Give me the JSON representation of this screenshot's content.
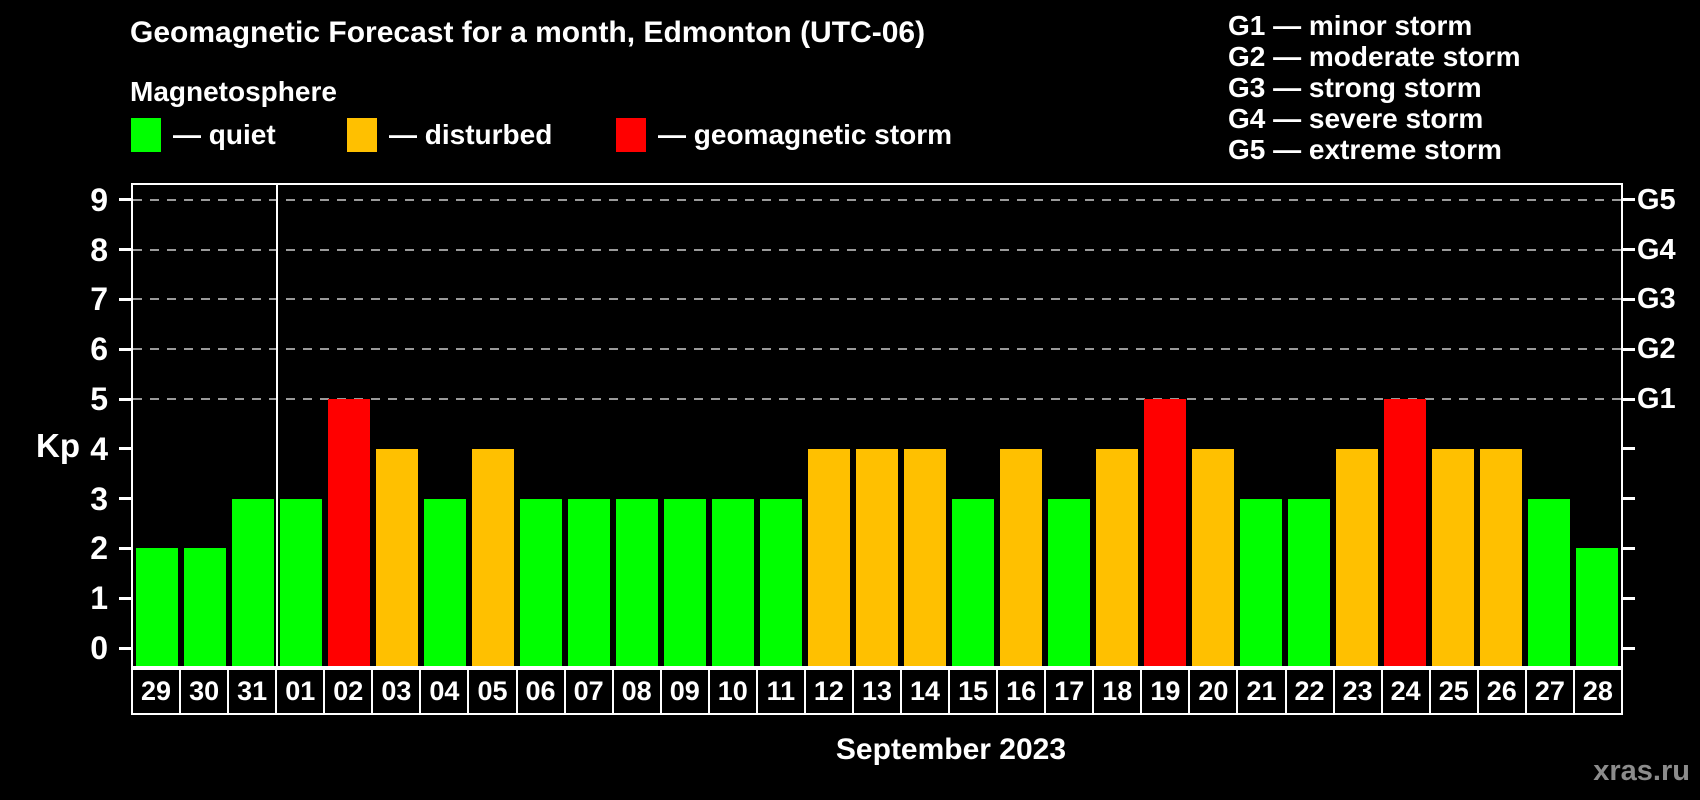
{
  "title": "Geomagnetic Forecast for a month, Edmonton (UTC-06)",
  "magnetosphere": {
    "title": "Magnetosphere",
    "items": [
      {
        "key": "quiet",
        "label": "— quiet",
        "color": "#00ff00"
      },
      {
        "key": "disturbed",
        "label": "— disturbed",
        "color": "#ffc000"
      },
      {
        "key": "storm",
        "label": "— geomagnetic storm",
        "color": "#ff0000"
      }
    ]
  },
  "storm_scale": [
    "G1 — minor storm",
    "G2 — moderate storm",
    "G3 — strong storm",
    "G4 — severe storm",
    "G5 — extreme storm"
  ],
  "chart_data": {
    "type": "bar",
    "title": "Geomagnetic Forecast for a month, Edmonton (UTC-06)",
    "ylabel": "Kp",
    "xlabel": "September 2023",
    "ylim": [
      0,
      9
    ],
    "yticks": [
      0,
      1,
      2,
      3,
      4,
      5,
      6,
      7,
      8,
      9
    ],
    "grid": "horizontal dashed lines at Kp 5-9 only",
    "legend_position": "top-left",
    "g_levels": [
      {
        "kp": 5,
        "label": "G1"
      },
      {
        "kp": 6,
        "label": "G2"
      },
      {
        "kp": 7,
        "label": "G3"
      },
      {
        "kp": 8,
        "label": "G4"
      },
      {
        "kp": 9,
        "label": "G5"
      }
    ],
    "month_separator_before": "01",
    "status_colors": {
      "quiet": "#00ff00",
      "disturbed": "#ffc000",
      "storm": "#ff0000"
    },
    "days": [
      {
        "date": "29",
        "kp": 2,
        "status": "quiet"
      },
      {
        "date": "30",
        "kp": 2,
        "status": "quiet"
      },
      {
        "date": "31",
        "kp": 3,
        "status": "quiet"
      },
      {
        "date": "01",
        "kp": 3,
        "status": "quiet"
      },
      {
        "date": "02",
        "kp": 5,
        "status": "storm"
      },
      {
        "date": "03",
        "kp": 4,
        "status": "disturbed"
      },
      {
        "date": "04",
        "kp": 3,
        "status": "quiet"
      },
      {
        "date": "05",
        "kp": 4,
        "status": "disturbed"
      },
      {
        "date": "06",
        "kp": 3,
        "status": "quiet"
      },
      {
        "date": "07",
        "kp": 3,
        "status": "quiet"
      },
      {
        "date": "08",
        "kp": 3,
        "status": "quiet"
      },
      {
        "date": "09",
        "kp": 3,
        "status": "quiet"
      },
      {
        "date": "10",
        "kp": 3,
        "status": "quiet"
      },
      {
        "date": "11",
        "kp": 3,
        "status": "quiet"
      },
      {
        "date": "12",
        "kp": 4,
        "status": "disturbed"
      },
      {
        "date": "13",
        "kp": 4,
        "status": "disturbed"
      },
      {
        "date": "14",
        "kp": 4,
        "status": "disturbed"
      },
      {
        "date": "15",
        "kp": 3,
        "status": "quiet"
      },
      {
        "date": "16",
        "kp": 4,
        "status": "disturbed"
      },
      {
        "date": "17",
        "kp": 3,
        "status": "quiet"
      },
      {
        "date": "18",
        "kp": 4,
        "status": "disturbed"
      },
      {
        "date": "19",
        "kp": 5,
        "status": "storm"
      },
      {
        "date": "20",
        "kp": 4,
        "status": "disturbed"
      },
      {
        "date": "21",
        "kp": 3,
        "status": "quiet"
      },
      {
        "date": "22",
        "kp": 3,
        "status": "quiet"
      },
      {
        "date": "23",
        "kp": 4,
        "status": "disturbed"
      },
      {
        "date": "24",
        "kp": 5,
        "status": "storm"
      },
      {
        "date": "25",
        "kp": 4,
        "status": "disturbed"
      },
      {
        "date": "26",
        "kp": 4,
        "status": "disturbed"
      },
      {
        "date": "27",
        "kp": 3,
        "status": "quiet"
      },
      {
        "date": "28",
        "kp": 2,
        "status": "quiet"
      }
    ]
  },
  "footer": {
    "month_label": "September 2023",
    "watermark": "xras.ru"
  },
  "colors": {
    "background": "#000000",
    "axis": "#ffffff",
    "gridline": "#9a9a9a",
    "text": "#ffffff",
    "watermark": "#8c8c8c"
  }
}
